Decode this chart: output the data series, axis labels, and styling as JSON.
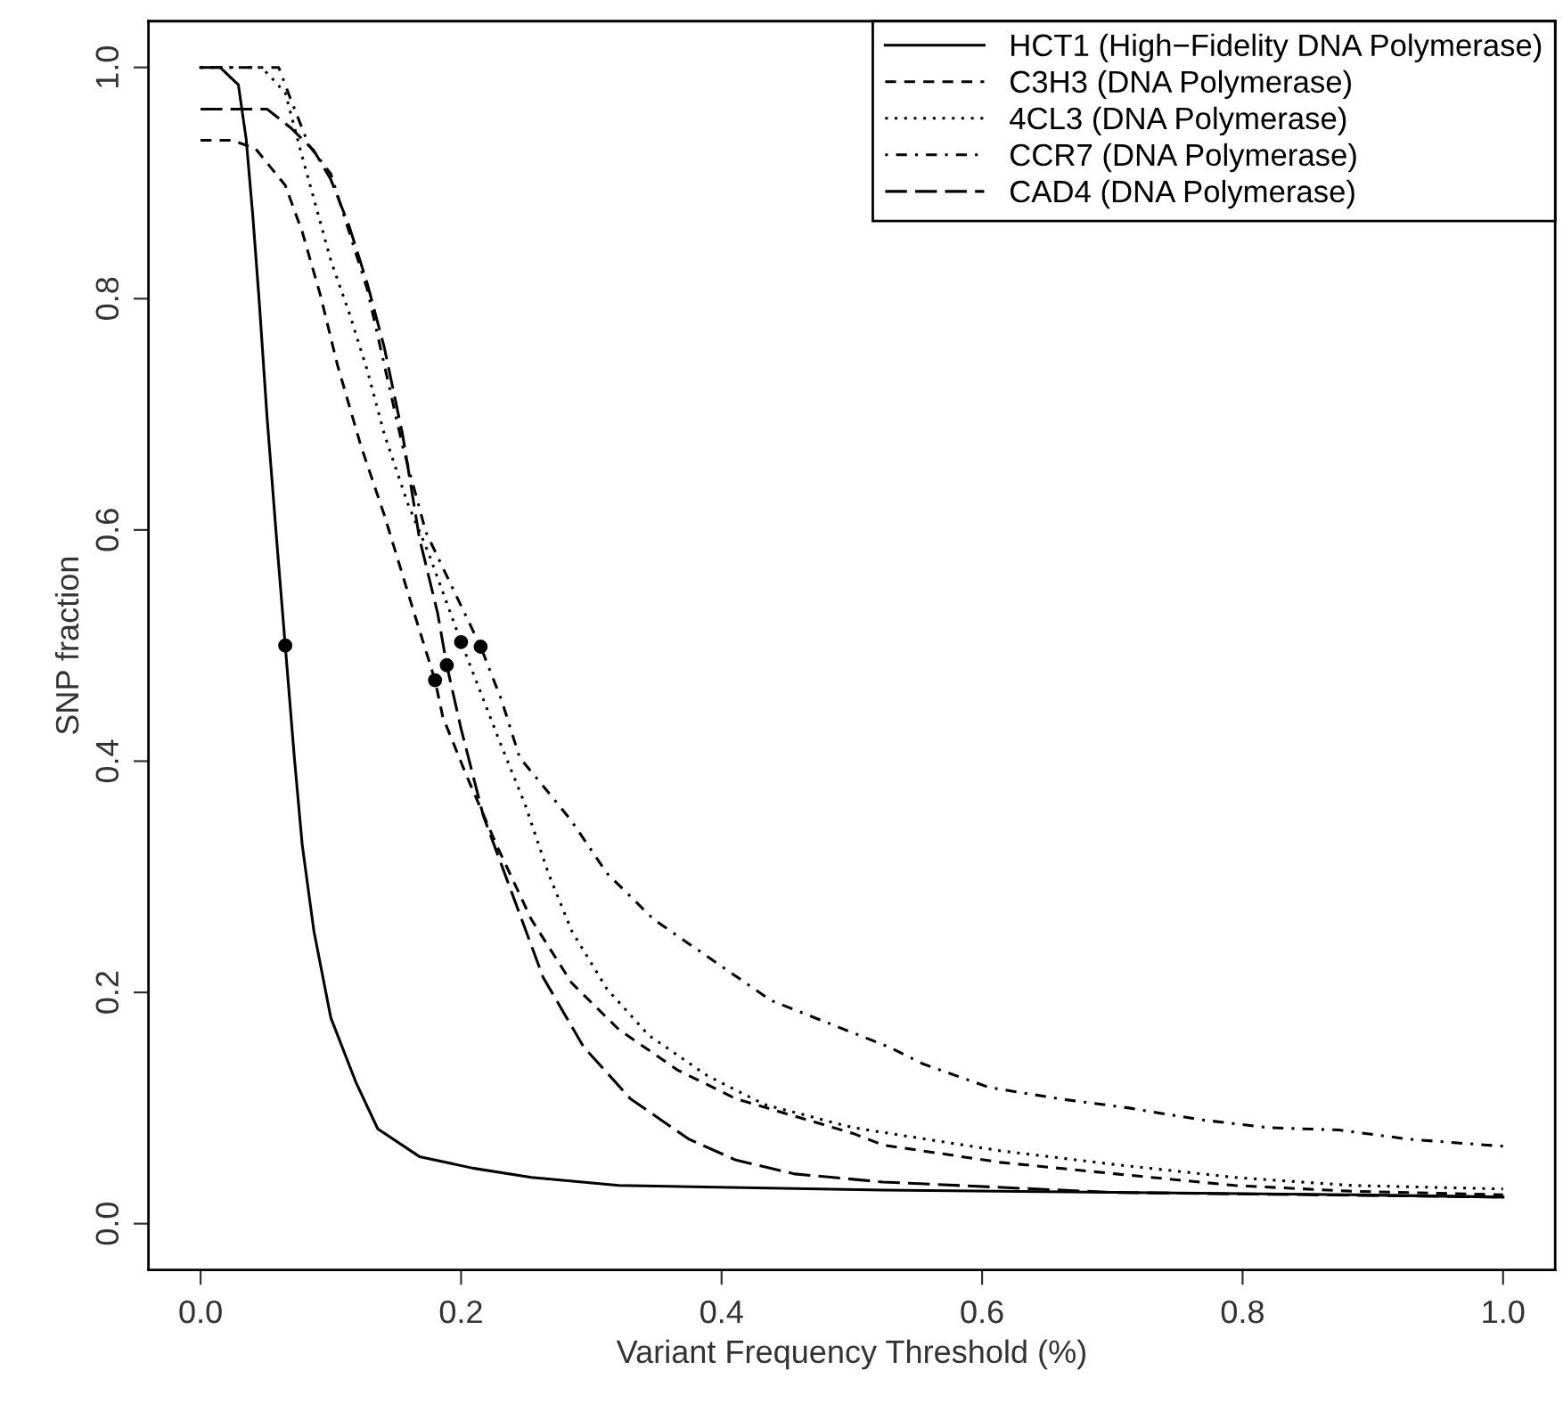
{
  "chart_data": {
    "type": "line",
    "xlabel": "Variant Frequency Threshold (%)",
    "ylabel": "SNP fraction",
    "legend": "top right",
    "grid": false,
    "xlim": [
      -0.04,
      1.04
    ],
    "ylim": [
      -0.04,
      1.04
    ],
    "xticks": [
      {
        "value": 0,
        "label": "0.0"
      },
      {
        "value": 0.2,
        "label": "0.2"
      },
      {
        "value": 0.4,
        "label": "0.4"
      },
      {
        "value": 0.6,
        "label": "0.6"
      },
      {
        "value": 0.8,
        "label": "0.8"
      },
      {
        "value": 1,
        "label": "1.0"
      }
    ],
    "yticks": [
      {
        "value": 0,
        "label": "0.0"
      },
      {
        "value": 0.2,
        "label": "0.2"
      },
      {
        "value": 0.4,
        "label": "0.4"
      },
      {
        "value": 0.6,
        "label": "0.6"
      },
      {
        "value": 0.8,
        "label": "0.8"
      },
      {
        "value": 1,
        "label": "1.0"
      }
    ],
    "series": [
      {
        "name": "HCT1 (High−Fidelity DNA Polymerase)",
        "color": "#000000",
        "line_style": "solid",
        "x": [
          0,
          0.015,
          0.029,
          0.035,
          0.04,
          0.045,
          0.051,
          0.059,
          0.065,
          0.072,
          0.078,
          0.087,
          0.1,
          0.119,
          0.136,
          0.168,
          0.209,
          0.254,
          0.321,
          0.524,
          0.883,
          1.0
        ],
        "values": [
          1.0,
          1.0,
          0.985,
          0.938,
          0.873,
          0.798,
          0.698,
          0.583,
          0.5,
          0.403,
          0.328,
          0.253,
          0.178,
          0.123,
          0.082,
          0.058,
          0.048,
          0.04,
          0.033,
          0.029,
          0.025,
          0.023
        ]
      },
      {
        "name": "C3H3 (DNA Polymerase)",
        "color": "#000000",
        "line_style": "dashed",
        "x": [
          0,
          0.024,
          0.042,
          0.065,
          0.078,
          0.092,
          0.105,
          0.123,
          0.141,
          0.164,
          0.18,
          0.186,
          0.204,
          0.227,
          0.254,
          0.285,
          0.321,
          0.366,
          0.411,
          0.456,
          0.501,
          0.524,
          0.614,
          0.703,
          0.794,
          0.884,
          1.0
        ],
        "values": [
          0.937,
          0.937,
          0.93,
          0.898,
          0.858,
          0.803,
          0.743,
          0.673,
          0.613,
          0.528,
          0.47,
          0.438,
          0.388,
          0.328,
          0.263,
          0.208,
          0.168,
          0.133,
          0.108,
          0.093,
          0.078,
          0.068,
          0.053,
          0.043,
          0.033,
          0.028,
          0.025
        ]
      },
      {
        "name": "4CL3 (DNA Polymerase)",
        "color": "#000000",
        "line_style": "dotted",
        "x": [
          0,
          0.047,
          0.065,
          0.078,
          0.089,
          0.1,
          0.114,
          0.128,
          0.141,
          0.159,
          0.175,
          0.2,
          0.231,
          0.249,
          0.267,
          0.285,
          0.312,
          0.344,
          0.389,
          0.433,
          0.501,
          0.614,
          0.703,
          0.794,
          0.884,
          1.0
        ],
        "values": [
          1.0,
          1.0,
          0.978,
          0.923,
          0.878,
          0.833,
          0.788,
          0.738,
          0.683,
          0.623,
          0.58,
          0.503,
          0.413,
          0.363,
          0.303,
          0.253,
          0.203,
          0.163,
          0.128,
          0.103,
          0.083,
          0.063,
          0.051,
          0.04,
          0.033,
          0.03
        ]
      },
      {
        "name": "CCR7 (DNA Polymerase)",
        "color": "#000000",
        "line_style": "dashdot",
        "x": [
          0,
          0.06,
          0.069,
          0.083,
          0.1,
          0.114,
          0.128,
          0.141,
          0.155,
          0.173,
          0.215,
          0.231,
          0.245,
          0.267,
          0.285,
          0.312,
          0.348,
          0.393,
          0.438,
          0.483,
          0.528,
          0.555,
          0.605,
          0.659,
          0.713,
          0.767,
          0.82,
          0.874,
          0.928,
          0.987,
          1.0
        ],
        "values": [
          1.0,
          1.0,
          0.973,
          0.933,
          0.908,
          0.858,
          0.808,
          0.743,
          0.673,
          0.598,
          0.499,
          0.453,
          0.403,
          0.373,
          0.348,
          0.303,
          0.263,
          0.228,
          0.193,
          0.173,
          0.153,
          0.138,
          0.118,
          0.108,
          0.1,
          0.09,
          0.083,
          0.081,
          0.073,
          0.068,
          0.067
        ]
      },
      {
        "name": "CAD4 (DNA Polymerase)",
        "color": "#000000",
        "line_style": "longdash",
        "x": [
          0,
          0.051,
          0.069,
          0.087,
          0.1,
          0.114,
          0.128,
          0.141,
          0.155,
          0.168,
          0.182,
          0.189,
          0.2,
          0.217,
          0.24,
          0.263,
          0.294,
          0.33,
          0.375,
          0.411,
          0.456,
          0.524,
          0.7,
          1.0
        ],
        "values": [
          0.964,
          0.964,
          0.948,
          0.928,
          0.903,
          0.863,
          0.813,
          0.758,
          0.683,
          0.593,
          0.528,
          0.483,
          0.428,
          0.353,
          0.283,
          0.213,
          0.153,
          0.108,
          0.073,
          0.055,
          0.043,
          0.036,
          0.027,
          0.023
        ]
      },
      {
        "type": "scatter",
        "marker": "circle",
        "color": "#000000",
        "x": [
          0.065,
          0.18,
          0.189,
          0.2,
          0.215
        ],
        "values": [
          0.5,
          0.47,
          0.483,
          0.503,
          0.499
        ]
      }
    ]
  }
}
